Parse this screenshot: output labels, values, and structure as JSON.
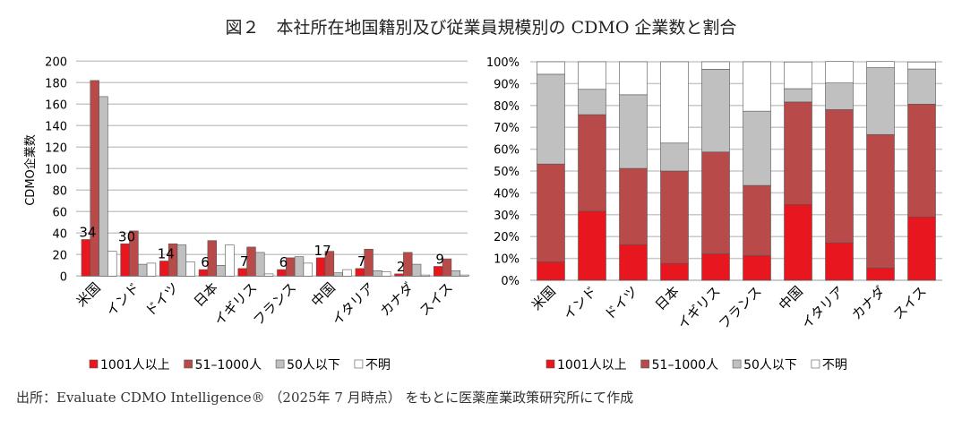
{
  "title": "図２　本社所在地国籍別及び従業員規模別の CDMO 企業数と割合",
  "caption": "出所：Evaluate CDMO Intelligence® （2025年 7 月時点） をもとに医薬産業政策研究所にて作成",
  "colors": {
    "1001人以上": "#e8161e",
    "51–1000人": "#b84a4a",
    "50人以下": "#c0c0c0",
    "不明": "#ffffff"
  },
  "chart_data": [
    {
      "type": "bar",
      "ylabel": "CDMO企業数",
      "ylim": [
        0,
        200
      ],
      "yticks": [
        0,
        20,
        40,
        60,
        80,
        100,
        120,
        140,
        160,
        180,
        200
      ],
      "grid": true,
      "legend": "bottom",
      "categories": [
        "米国",
        "インド",
        "ドイツ",
        "日本",
        "イギリス",
        "フランス",
        "中国",
        "イタリア",
        "カナダ",
        "スイス"
      ],
      "series": [
        {
          "name": "1001人以上",
          "values": [
            34,
            30,
            14,
            6,
            7,
            6,
            17,
            7,
            2,
            9
          ]
        },
        {
          "name": "51–1000人",
          "values": [
            182,
            42,
            30,
            33,
            27,
            17,
            23,
            25,
            22,
            16
          ]
        },
        {
          "name": "50人以下",
          "values": [
            167,
            11,
            29,
            10,
            22,
            18,
            3,
            5,
            11,
            5
          ]
        },
        {
          "name": "不明",
          "values": [
            23,
            12,
            13,
            29,
            2,
            12,
            6,
            4,
            1,
            1
          ]
        }
      ],
      "data_labels": [
        "34",
        "30",
        "14",
        "6",
        "7",
        "6",
        "17",
        "7",
        "2",
        "9"
      ]
    },
    {
      "type": "bar",
      "stacked": true,
      "ylim": [
        0,
        100
      ],
      "yticks": [
        "0%",
        "10%",
        "20%",
        "30%",
        "40%",
        "50%",
        "60%",
        "70%",
        "80%",
        "90%",
        "100%"
      ],
      "grid": true,
      "legend": "bottom",
      "categories": [
        "米国",
        "インド",
        "ドイツ",
        "日本",
        "イギリス",
        "フランス",
        "中国",
        "イタリア",
        "カナダ",
        "スイス"
      ],
      "series": [
        {
          "name": "1001人以上",
          "values": [
            8.4,
            31.6,
            16.3,
            7.7,
            12.1,
            11.3,
            34.7,
            17.1,
            5.6,
            29.0
          ]
        },
        {
          "name": "51–1000人",
          "values": [
            44.8,
            44.2,
            34.9,
            42.3,
            46.6,
            32.1,
            46.9,
            61.0,
            61.1,
            51.6
          ]
        },
        {
          "name": "50人以下",
          "values": [
            41.1,
            11.6,
            33.7,
            12.8,
            37.9,
            34.0,
            6.1,
            12.2,
            30.6,
            16.1
          ]
        },
        {
          "name": "不明",
          "values": [
            5.7,
            12.6,
            15.1,
            37.2,
            3.4,
            22.6,
            12.2,
            9.8,
            2.8,
            3.2
          ]
        }
      ]
    }
  ]
}
